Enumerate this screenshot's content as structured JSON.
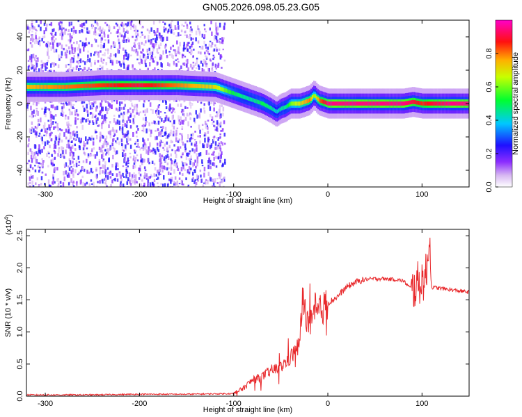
{
  "title": "GN05.2026.098.05.23.G05",
  "chart_data": [
    {
      "type": "heatmap",
      "xlabel": "Height of straight line (km)",
      "ylabel": "Frequency (Hz)",
      "xlim": [
        -320,
        150
      ],
      "ylim": [
        -50,
        50
      ],
      "x_ticks": [
        -300,
        -200,
        -100,
        0,
        100
      ],
      "y_ticks": [
        -40,
        -20,
        0,
        20,
        40
      ],
      "colorbar": {
        "label": "Normalized spectral amplitude",
        "range": [
          0,
          1
        ],
        "ticks": [
          0.0,
          0.2,
          0.4,
          0.6,
          0.8
        ],
        "tick_labels": [
          "0.0",
          "0.2",
          "0.4",
          "0.6",
          "0.8"
        ]
      },
      "ridge": {
        "x": [
          -320,
          -280,
          -240,
          -200,
          -160,
          -120,
          -110,
          -100,
          -90,
          -80,
          -70,
          -60,
          -55,
          -50,
          -45,
          -40,
          -30,
          -20,
          -15,
          -10,
          0,
          20,
          40,
          60,
          80,
          90,
          100,
          110,
          130,
          150
        ],
        "y": [
          10,
          10,
          11,
          11,
          11,
          10,
          8,
          6,
          4,
          2,
          0,
          -3,
          -5,
          -3,
          -2,
          0,
          0,
          2,
          5,
          2,
          0,
          0,
          0,
          0,
          0,
          1,
          0,
          0,
          0,
          0
        ],
        "amplitude": [
          0.75,
          0.8,
          0.85,
          0.9,
          0.8,
          0.7,
          0.6,
          0.5,
          0.45,
          0.45,
          0.5,
          0.45,
          0.4,
          0.45,
          0.45,
          0.6,
          0.7,
          0.8,
          0.6,
          0.8,
          0.95,
          0.95,
          0.95,
          0.95,
          0.95,
          0.9,
          0.85,
          0.9,
          0.95,
          0.95
        ]
      }
    },
    {
      "type": "line",
      "xlabel": "Height of straight line (km)",
      "ylabel": "SNR (10 * v/v)",
      "y_multiplier": "(x10",
      "y_multiplier_exp": "4",
      "y_multiplier_close": ")",
      "xlim": [
        -320,
        150
      ],
      "ylim": [
        0,
        2.6
      ],
      "x_ticks": [
        -300,
        -200,
        -100,
        0,
        100
      ],
      "y_ticks": [
        0.0,
        0.5,
        1.0,
        1.5,
        2.0,
        2.5
      ],
      "y_tick_labels": [
        "0.0",
        "0.5",
        "1.0",
        "1.5",
        "2.0",
        "2.5"
      ],
      "series": [
        {
          "color": "#e8282b",
          "x": [
            -320,
            -250,
            -200,
            -150,
            -100,
            -90,
            -80,
            -70,
            -60,
            -50,
            -40,
            -30,
            -27,
            -20,
            -10,
            0,
            10,
            20,
            30,
            40,
            50,
            60,
            70,
            80,
            90,
            95,
            100,
            105,
            108,
            110,
            120,
            130,
            140,
            150
          ],
          "y": [
            0.02,
            0.02,
            0.03,
            0.03,
            0.04,
            0.12,
            0.25,
            0.3,
            0.4,
            0.45,
            0.6,
            0.8,
            1.5,
            1.1,
            1.3,
            1.45,
            1.55,
            1.7,
            1.78,
            1.82,
            1.83,
            1.83,
            1.82,
            1.8,
            1.65,
            1.75,
            1.8,
            1.9,
            2.6,
            1.7,
            1.68,
            1.66,
            1.64,
            1.62
          ]
        }
      ]
    }
  ]
}
